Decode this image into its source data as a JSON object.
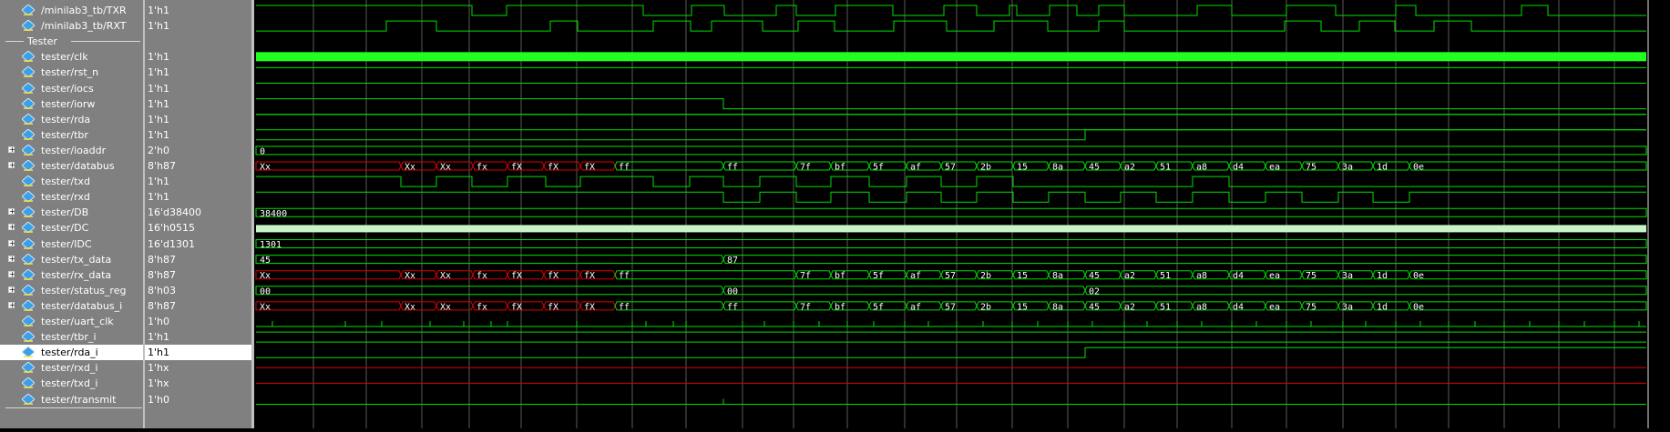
{
  "divider_label": "Tester",
  "colors": {
    "wave": "#00e000",
    "x_state": "#e00000",
    "grid": "#5a5a5a",
    "clk": "#20ff20",
    "bus_fill": "#c8f5c8"
  },
  "selected_signal": "tester/rda_i",
  "signals": [
    {
      "name": "/minilab3_tb/TXR",
      "value": "1'h1",
      "expandable": false
    },
    {
      "name": "/minilab3_tb/RXT",
      "value": "1'h1",
      "expandable": false
    },
    {
      "name": "divider",
      "value": "",
      "expandable": false
    },
    {
      "name": "tester/clk",
      "value": "1'h1",
      "expandable": false
    },
    {
      "name": "tester/rst_n",
      "value": "1'h1",
      "expandable": false
    },
    {
      "name": "tester/iocs",
      "value": "1'h1",
      "expandable": false
    },
    {
      "name": "tester/iorw",
      "value": "1'h1",
      "expandable": false
    },
    {
      "name": "tester/rda",
      "value": "1'h1",
      "expandable": false
    },
    {
      "name": "tester/tbr",
      "value": "1'h1",
      "expandable": false
    },
    {
      "name": "tester/ioaddr",
      "value": "2'h0",
      "expandable": true
    },
    {
      "name": "tester/databus",
      "value": "8'h87",
      "expandable": true
    },
    {
      "name": "tester/txd",
      "value": "1'h1",
      "expandable": false
    },
    {
      "name": "tester/rxd",
      "value": "1'h1",
      "expandable": false
    },
    {
      "name": "tester/DB",
      "value": "16'd38400",
      "expandable": true
    },
    {
      "name": "tester/DC",
      "value": "16'h0515",
      "expandable": true
    },
    {
      "name": "tester/IDC",
      "value": "16'd1301",
      "expandable": true
    },
    {
      "name": "tester/tx_data",
      "value": "8'h87",
      "expandable": true
    },
    {
      "name": "tester/rx_data",
      "value": "8'h87",
      "expandable": true
    },
    {
      "name": "tester/status_reg",
      "value": "8'h03",
      "expandable": true
    },
    {
      "name": "tester/databus_i",
      "value": "8'h87",
      "expandable": true
    },
    {
      "name": "tester/uart_clk",
      "value": "1'h0",
      "expandable": false
    },
    {
      "name": "tester/tbr_i",
      "value": "1'h1",
      "expandable": false
    },
    {
      "name": "tester/rda_i",
      "value": "1'h1",
      "expandable": false
    },
    {
      "name": "tester/rxd_i",
      "value": "1'hx",
      "expandable": false
    },
    {
      "name": "tester/txd_i",
      "value": "1'hx",
      "expandable": false
    },
    {
      "name": "tester/transmit",
      "value": "1'h0",
      "expandable": false
    }
  ],
  "bus_labels": {
    "ioaddr": [
      "0"
    ],
    "databus": [
      "Xx",
      "Xx",
      "Xx",
      "fx",
      "fX",
      "fX",
      "fX",
      "ff",
      "ff",
      "7f",
      "bf",
      "5f",
      "af",
      "57",
      "2b",
      "15",
      "8a",
      "45",
      "a2",
      "51",
      "a8",
      "d4",
      "ea",
      "75",
      "3a",
      "1d",
      "0e"
    ],
    "DB": [
      "38400"
    ],
    "IDC": [
      "1301"
    ],
    "tx_data": [
      "45",
      "87"
    ],
    "rx_data": [
      "Xx",
      "Xx",
      "Xx",
      "fx",
      "fX",
      "fX",
      "fX",
      "ff",
      "7f",
      "bf",
      "5f",
      "af",
      "57",
      "2b",
      "15",
      "8a",
      "45",
      "a2",
      "51",
      "a8",
      "d4",
      "ea",
      "75",
      "3a",
      "1d",
      "0e"
    ],
    "status_reg": [
      "00",
      "00",
      "02"
    ],
    "databus_i": [
      "Xx",
      "Xx",
      "Xx",
      "fx",
      "fX",
      "fX",
      "fX",
      "ff",
      "ff",
      "7f",
      "bf",
      "5f",
      "af",
      "57",
      "2b",
      "15",
      "8a",
      "45",
      "a2",
      "51",
      "a8",
      "d4",
      "ea",
      "75",
      "3a",
      "1d",
      "0e"
    ]
  }
}
